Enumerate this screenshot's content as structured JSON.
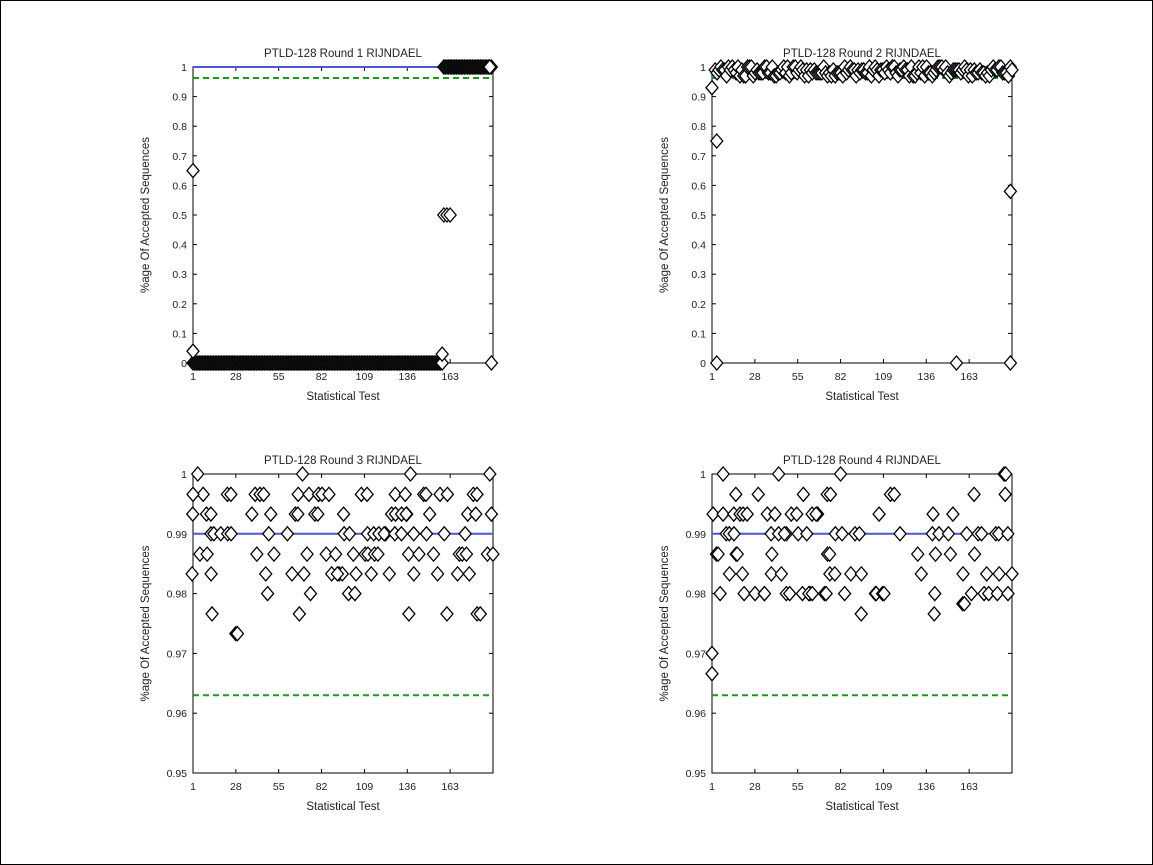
{
  "figure": {
    "background": "#ffffff",
    "frame_color": "#000000"
  },
  "colors": {
    "ref_line": "#4a57d6",
    "threshold": "#1a9a1a",
    "marker": "#000000"
  },
  "chart_data": [
    {
      "type": "scatter",
      "title": "PTLD-128 Round 1 RIJNDAEL",
      "xlabel": "Statistical Test",
      "ylabel": "%age Of Accepted Sequences",
      "xlim": [
        1,
        190
      ],
      "ylim": [
        0,
        1
      ],
      "xticks": [
        1,
        28,
        55,
        82,
        109,
        136,
        163
      ],
      "yticks": [
        0,
        0.1,
        0.2,
        0.3,
        0.4,
        0.5,
        0.6,
        0.7,
        0.8,
        0.9,
        1
      ],
      "ytick_labels": [
        "0",
        "0.1",
        "0.2",
        "0.3",
        "0.4",
        "0.5",
        "0.6",
        "0.7",
        "0.8",
        "0.9",
        "1"
      ],
      "reference_line": 1.0,
      "threshold_line": 0.963,
      "marker": "diamond",
      "series": [
        {
          "x": [
            1,
            1,
            158,
            159,
            161,
            163,
            188,
            189
          ],
          "y": [
            0.65,
            0.04,
            0.03,
            0.5,
            0.5,
            0.5,
            1.0,
            0.0
          ]
        }
      ],
      "dense_runs": [
        {
          "x_from": 1,
          "x_to": 158,
          "y": 0
        },
        {
          "x_from": 159,
          "x_to": 189,
          "y": 1.0
        }
      ]
    },
    {
      "type": "scatter",
      "title": "PTLD-128 Round 2 RIJNDAEL",
      "xlabel": "Statistical Test",
      "ylabel": "%age Of Accepted Sequences",
      "xlim": [
        1,
        190
      ],
      "ylim": [
        0,
        1
      ],
      "xticks": [
        1,
        28,
        55,
        82,
        109,
        136,
        163
      ],
      "yticks": [
        0,
        0.1,
        0.2,
        0.3,
        0.4,
        0.5,
        0.6,
        0.7,
        0.8,
        0.9,
        1
      ],
      "ytick_labels": [
        "0",
        "0.1",
        "0.2",
        "0.3",
        "0.4",
        "0.5",
        "0.6",
        "0.7",
        "0.8",
        "0.9",
        "1"
      ],
      "reference_line": 1.0,
      "threshold_line": 0.963,
      "marker": "diamond",
      "series": [
        {
          "x": [
            1,
            4,
            4,
            155,
            189,
            189,
            190
          ],
          "y": [
            0.93,
            0.75,
            0.0,
            0.0,
            0.58,
            0.0,
            0.99
          ]
        }
      ],
      "dense_band": {
        "x_from": 3,
        "x_to": 190,
        "y_values": [
          0.97,
          0.98,
          0.99,
          1.0
        ]
      }
    },
    {
      "type": "scatter",
      "title": "PTLD-128 Round 3 RIJNDAEL",
      "xlabel": "Statistical Test",
      "ylabel": "%age Of Accepted Sequences",
      "xlim": [
        1,
        190
      ],
      "ylim": [
        0.95,
        1
      ],
      "xticks": [
        1,
        28,
        55,
        82,
        109,
        136,
        163
      ],
      "yticks": [
        0.95,
        0.96,
        0.97,
        0.98,
        0.99,
        1
      ],
      "ytick_labels": [
        "0.95",
        "0.96",
        "0.97",
        "0.98",
        "0.99",
        "1"
      ],
      "reference_line": 0.99,
      "threshold_line": 0.963,
      "marker": "diamond",
      "series": [
        {
          "x": [
            1,
            4,
            13,
            28,
            29,
            48,
            68,
            70,
            75,
            92,
            99,
            103,
            137,
            138,
            161,
            180,
            182,
            188,
            189,
            190
          ],
          "y": [
            0.9966,
            1.0,
            0.9766,
            0.9733,
            0.9733,
            0.98,
            0.9766,
            1.0,
            0.98,
            0.9833,
            0.98,
            0.98,
            0.9766,
            1.0,
            0.9766,
            0.9766,
            0.9766,
            1.0,
            0.9933,
            0.9866
          ]
        }
      ],
      "scatter_band": {
        "x_from": 1,
        "x_to": 190,
        "y_values": [
          0.9833,
          0.9866,
          0.99,
          0.9933,
          0.9966
        ]
      }
    },
    {
      "type": "scatter",
      "title": "PTLD-128 Round 4 RIJNDAEL",
      "xlabel": "Statistical Test",
      "ylabel": "%age Of Accepted Sequences",
      "xlim": [
        1,
        190
      ],
      "ylim": [
        0.95,
        1
      ],
      "xticks": [
        1,
        28,
        55,
        82,
        109,
        136,
        163
      ],
      "yticks": [
        0.95,
        0.96,
        0.97,
        0.98,
        0.99,
        1
      ],
      "ytick_labels": [
        "0.95",
        "0.96",
        "0.97",
        "0.98",
        "0.99",
        "1"
      ],
      "reference_line": 0.99,
      "threshold_line": 0.963,
      "marker": "diamond",
      "series": [
        {
          "x": [
            1,
            1,
            8,
            43,
            82,
            95,
            141,
            159,
            160,
            185,
            186,
            190
          ],
          "y": [
            0.97,
            0.9666,
            1.0,
            1.0,
            1.0,
            0.9766,
            0.9766,
            0.9783,
            0.9783,
            1.0,
            1.0,
            0.9833
          ]
        }
      ],
      "scatter_band": {
        "x_from": 1,
        "x_to": 190,
        "y_values": [
          0.98,
          0.9833,
          0.9866,
          0.99,
          0.9933,
          0.9966
        ]
      }
    }
  ]
}
